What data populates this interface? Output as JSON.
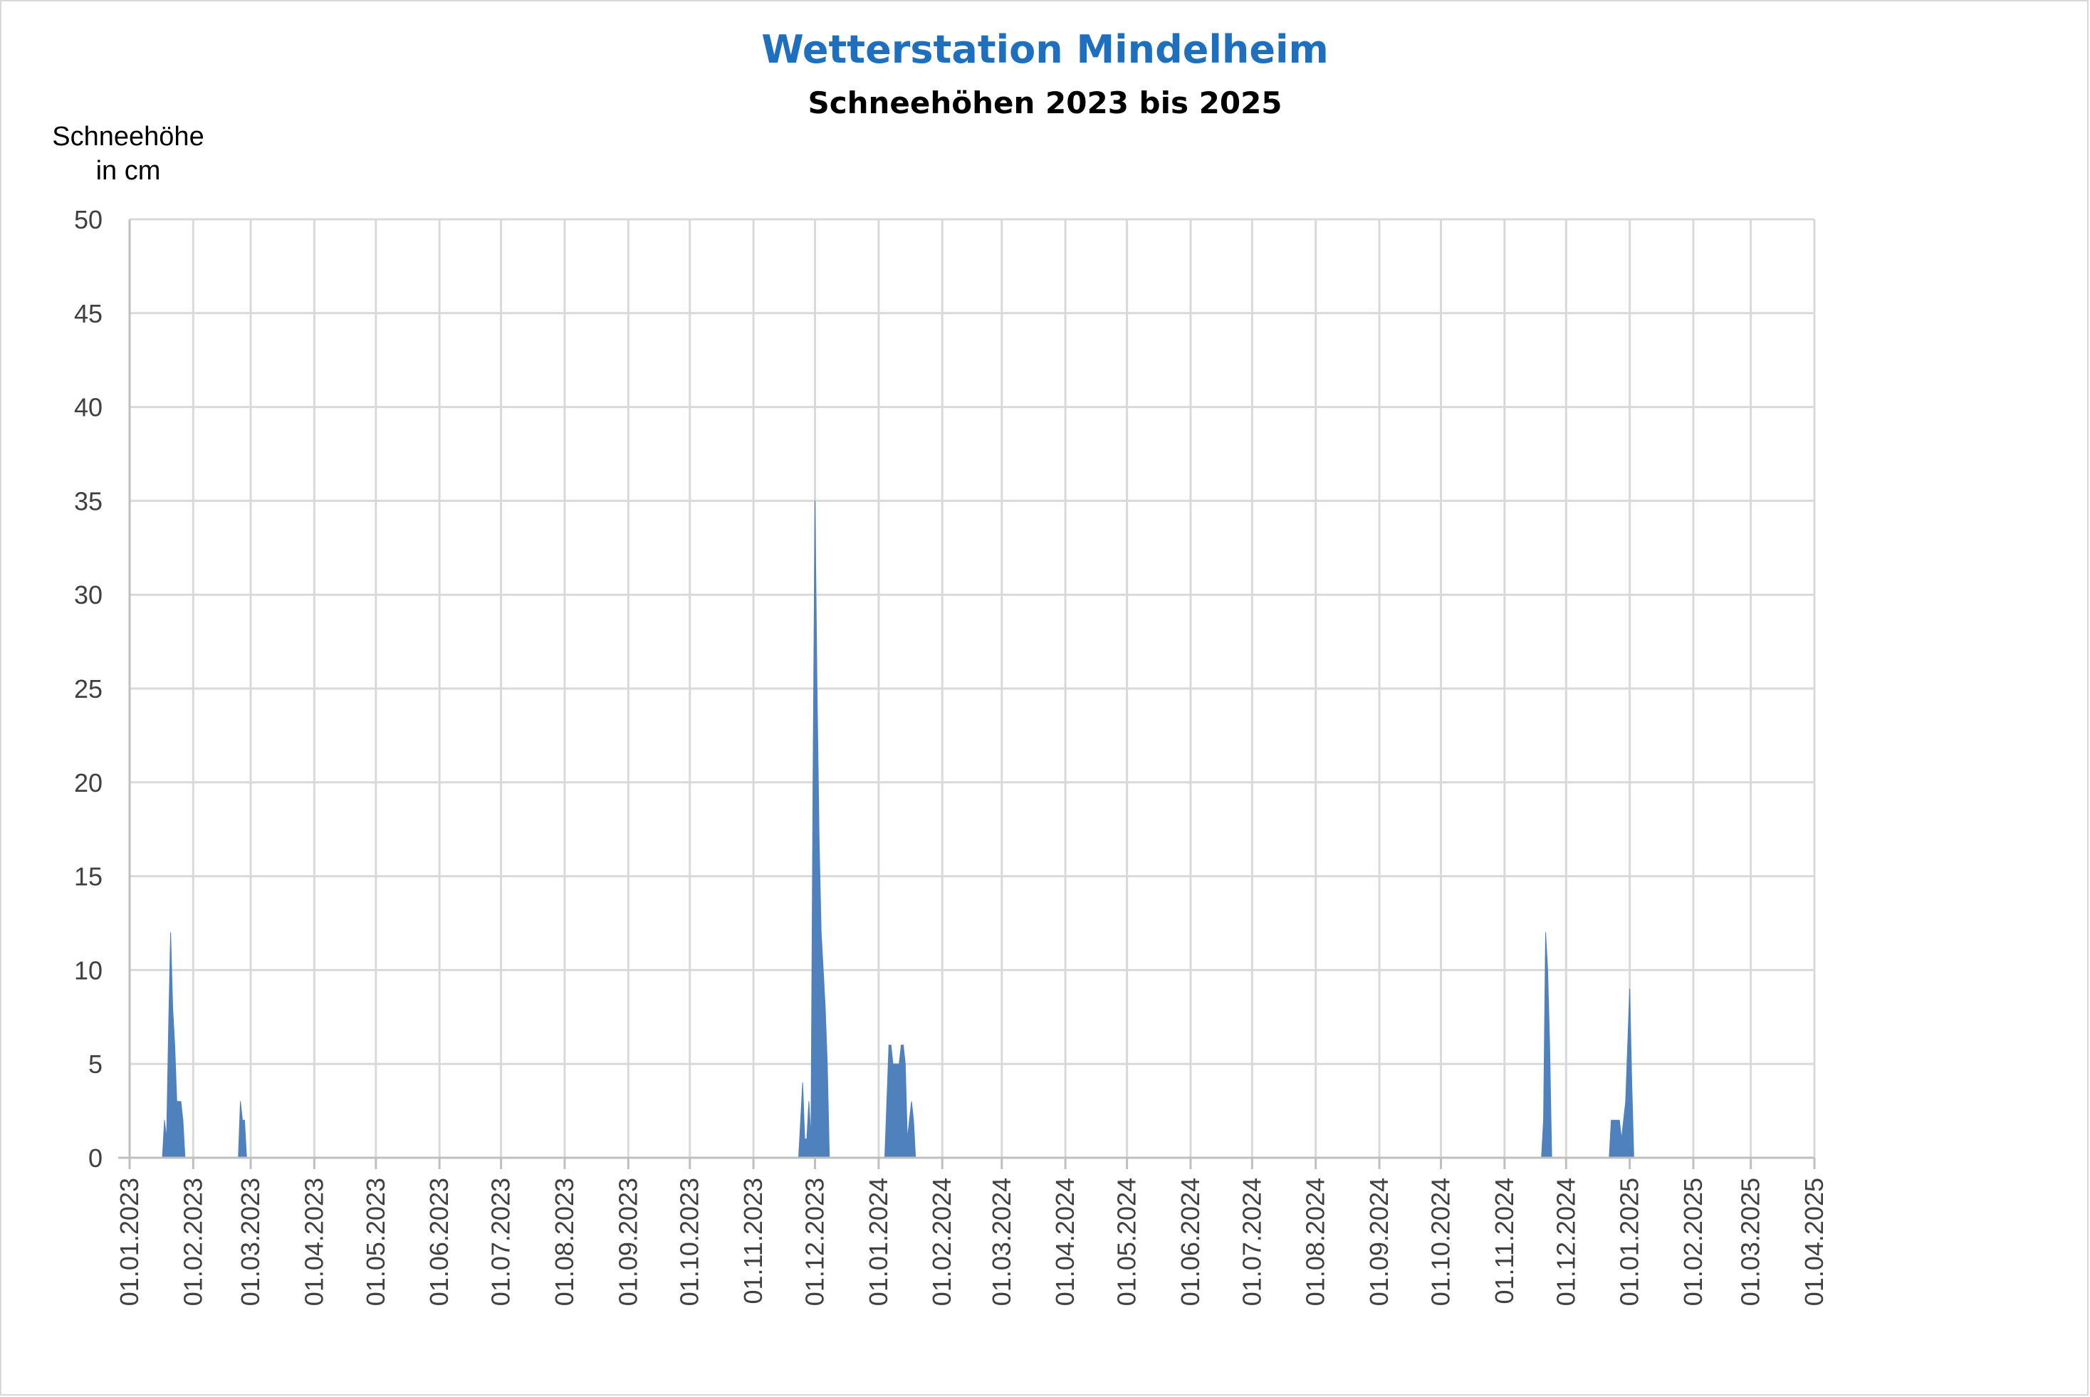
{
  "chart_data": {
    "type": "area",
    "title": "Wetterstation Mindelheim",
    "subtitle": "Schneehöhen 2023 bis 2025",
    "ylabel": [
      "Schneehöhe",
      "in cm"
    ],
    "xlabel": "",
    "ylim": [
      0,
      50
    ],
    "yticks": [
      0,
      5,
      10,
      15,
      20,
      25,
      30,
      35,
      40,
      45,
      50
    ],
    "xlim": [
      "2023-01-01",
      "2025-04-01"
    ],
    "xticks": [
      "01.01.2023",
      "01.02.2023",
      "01.03.2023",
      "01.04.2023",
      "01.05.2023",
      "01.06.2023",
      "01.07.2023",
      "01.08.2023",
      "01.09.2023",
      "01.10.2023",
      "01.11.2023",
      "01.12.2023",
      "01.01.2024",
      "01.02.2024",
      "01.03.2024",
      "01.04.2024",
      "01.05.2024",
      "01.06.2024",
      "01.07.2024",
      "01.08.2024",
      "01.09.2024",
      "01.10.2024",
      "01.11.2024",
      "01.12.2024",
      "01.01.2025",
      "01.02.2025",
      "01.03.2025",
      "01.04.2025"
    ],
    "grid": true,
    "color": "#4f81bd",
    "series": [
      {
        "points": [
          [
            "2023-01-17",
            0
          ],
          [
            "2023-01-18",
            2
          ],
          [
            "2023-01-19",
            1
          ],
          [
            "2023-01-20",
            7
          ],
          [
            "2023-01-21",
            12
          ],
          [
            "2023-01-22",
            8
          ],
          [
            "2023-01-23",
            6
          ],
          [
            "2023-01-24",
            3
          ],
          [
            "2023-01-26",
            3
          ],
          [
            "2023-01-27",
            2
          ],
          [
            "2023-01-28",
            0
          ],
          [
            "2023-02-23",
            0
          ],
          [
            "2023-02-24",
            3
          ],
          [
            "2023-02-25",
            2
          ],
          [
            "2023-02-26",
            2
          ],
          [
            "2023-02-27",
            0
          ],
          [
            "2023-11-23",
            0
          ],
          [
            "2023-11-25",
            4
          ],
          [
            "2023-11-26",
            1
          ],
          [
            "2023-11-27",
            1
          ],
          [
            "2023-11-28",
            3
          ],
          [
            "2023-11-29",
            1
          ],
          [
            "2023-11-30",
            20
          ],
          [
            "2023-12-01",
            35
          ],
          [
            "2023-12-02",
            25
          ],
          [
            "2023-12-03",
            17
          ],
          [
            "2023-12-04",
            12
          ],
          [
            "2023-12-05",
            10
          ],
          [
            "2023-12-06",
            8
          ],
          [
            "2023-12-07",
            5
          ],
          [
            "2023-12-08",
            0
          ],
          [
            "2024-01-04",
            0
          ],
          [
            "2024-01-05",
            3
          ],
          [
            "2024-01-06",
            6
          ],
          [
            "2024-01-07",
            6
          ],
          [
            "2024-01-08",
            5
          ],
          [
            "2024-01-09",
            5
          ],
          [
            "2024-01-10",
            5
          ],
          [
            "2024-01-11",
            5
          ],
          [
            "2024-01-12",
            6
          ],
          [
            "2024-01-13",
            6
          ],
          [
            "2024-01-14",
            5
          ],
          [
            "2024-01-15",
            1
          ],
          [
            "2024-01-16",
            2
          ],
          [
            "2024-01-17",
            3
          ],
          [
            "2024-01-18",
            2
          ],
          [
            "2024-01-19",
            0
          ],
          [
            "2024-11-19",
            0
          ],
          [
            "2024-11-20",
            2
          ],
          [
            "2024-11-21",
            12
          ],
          [
            "2024-11-22",
            10
          ],
          [
            "2024-11-23",
            6
          ],
          [
            "2024-11-24",
            0
          ],
          [
            "2024-12-22",
            0
          ],
          [
            "2024-12-23",
            2
          ],
          [
            "2024-12-25",
            2
          ],
          [
            "2024-12-27",
            2
          ],
          [
            "2024-12-28",
            1
          ],
          [
            "2024-12-30",
            3
          ],
          [
            "2025-01-01",
            9
          ],
          [
            "2025-01-02",
            4
          ],
          [
            "2025-01-03",
            0
          ]
        ]
      }
    ]
  }
}
